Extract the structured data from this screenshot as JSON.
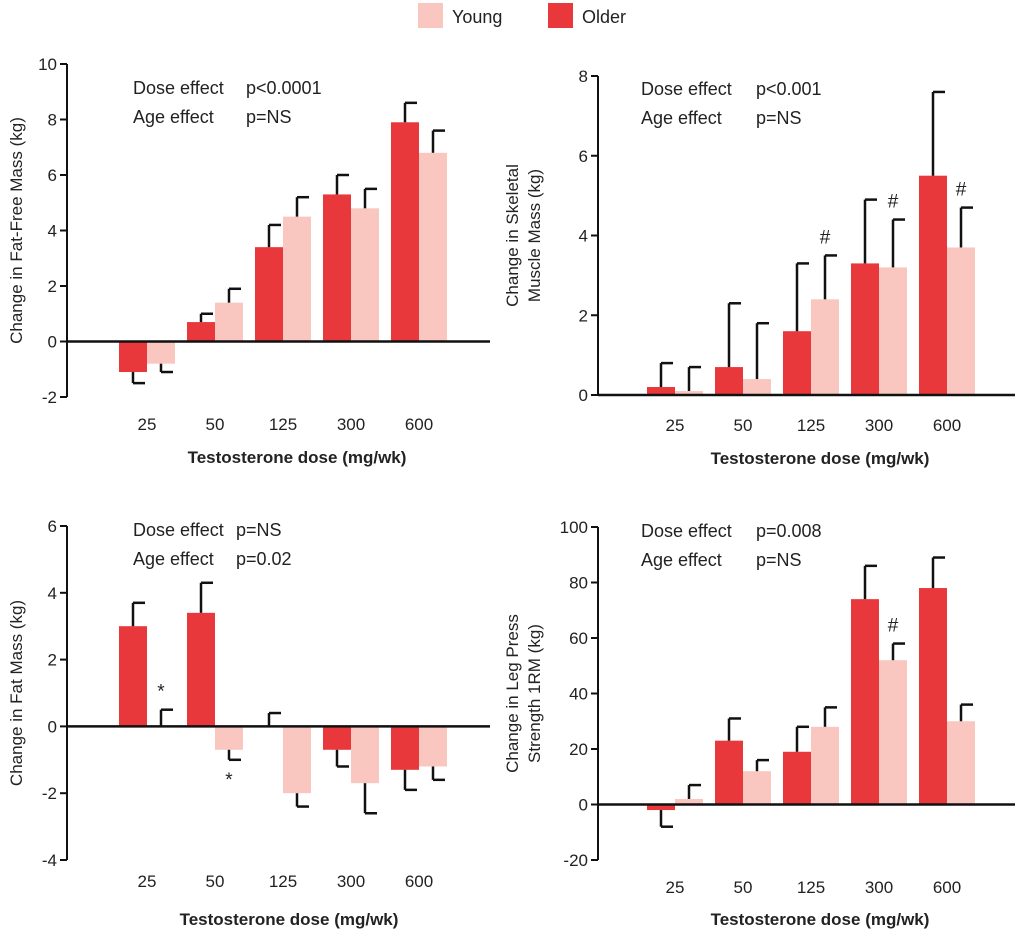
{
  "legend": {
    "items": [
      {
        "label": "Young",
        "color": "#f9c7c0"
      },
      {
        "label": "Older",
        "color": "#e8383b"
      }
    ]
  },
  "colors": {
    "young": "#f9c7c0",
    "older": "#e8383b",
    "axis": "#111111",
    "text": "#222222"
  },
  "chart_data": [
    {
      "type": "bar",
      "categories": [
        "25",
        "50",
        "125",
        "300",
        "600"
      ],
      "xlabel": "Testosterone dose (mg/wk)",
      "ylabel": [
        "Change in Fat-Free Mass (kg)"
      ],
      "ylim": [
        -2,
        10
      ],
      "yticks": [
        -2,
        0,
        2,
        4,
        6,
        8,
        10
      ],
      "stats": [
        [
          "Dose effect",
          "p<0.0001"
        ],
        [
          "Age effect",
          "p=NS"
        ]
      ],
      "series": [
        {
          "name": "Older",
          "values": [
            -1.1,
            0.7,
            3.4,
            5.3,
            7.9
          ],
          "errors": [
            0.4,
            0.3,
            0.8,
            0.7,
            0.7
          ]
        },
        {
          "name": "Young",
          "values": [
            -0.8,
            1.4,
            4.5,
            4.8,
            6.8
          ],
          "errors": [
            0.3,
            0.5,
            0.7,
            0.7,
            0.8
          ]
        }
      ],
      "annotations": []
    },
    {
      "type": "bar",
      "categories": [
        "25",
        "50",
        "125",
        "300",
        "600"
      ],
      "xlabel": "Testosterone dose (mg/wk)",
      "ylabel": [
        "Change in Skeletal",
        "Muscle Mass (kg)"
      ],
      "ylim": [
        0,
        8
      ],
      "yticks": [
        0,
        2,
        4,
        6,
        8
      ],
      "stats": [
        [
          "Dose effect",
          "p<0.001"
        ],
        [
          "Age effect",
          "p=NS"
        ]
      ],
      "series": [
        {
          "name": "Older",
          "values": [
            0.2,
            0.7,
            1.6,
            3.3,
            5.5
          ],
          "errors": [
            0.6,
            1.6,
            1.7,
            1.6,
            2.1
          ]
        },
        {
          "name": "Young",
          "values": [
            0.1,
            0.4,
            2.4,
            3.2,
            3.7
          ],
          "errors": [
            0.6,
            1.4,
            1.1,
            1.2,
            1.0
          ]
        }
      ],
      "annotations": [
        {
          "category": 2,
          "series": 1,
          "text": "#",
          "position": "above"
        },
        {
          "category": 3,
          "series": 1,
          "text": "#",
          "position": "above"
        },
        {
          "category": 4,
          "series": 1,
          "text": "#",
          "position": "above"
        }
      ]
    },
    {
      "type": "bar",
      "categories": [
        "25",
        "50",
        "125",
        "300",
        "600"
      ],
      "xlabel": "Testosterone dose (mg/wk)",
      "ylabel": [
        "Change in Fat Mass (kg)"
      ],
      "ylim": [
        -4,
        6
      ],
      "yticks": [
        -4,
        -2,
        0,
        2,
        4,
        6
      ],
      "stats": [
        [
          "Dose effect",
          "p=NS"
        ],
        [
          "Age effect",
          "p=0.02"
        ]
      ],
      "series": [
        {
          "name": "Older",
          "values": [
            3.0,
            3.4,
            0.0,
            -0.7,
            -1.3
          ],
          "errors": [
            0.7,
            0.9,
            0.4,
            0.5,
            0.6
          ]
        },
        {
          "name": "Young",
          "values": [
            0.0,
            -0.7,
            -2.0,
            -1.7,
            -1.2
          ],
          "errors": [
            0.5,
            0.3,
            0.4,
            0.9,
            0.4
          ]
        }
      ],
      "annotations": [
        {
          "category": 0,
          "series": 1,
          "text": "*",
          "position": "above"
        },
        {
          "category": 1,
          "series": 1,
          "text": "*",
          "position": "below"
        }
      ]
    },
    {
      "type": "bar",
      "categories": [
        "25",
        "50",
        "125",
        "300",
        "600"
      ],
      "xlabel": "Testosterone dose (mg/wk)",
      "ylabel": [
        "Change in Leg Press",
        "Strength 1RM (kg)"
      ],
      "ylim": [
        -20,
        100
      ],
      "yticks": [
        -20,
        0,
        20,
        40,
        60,
        80,
        100
      ],
      "stats": [
        [
          "Dose effect",
          "p=0.008"
        ],
        [
          "Age effect",
          "p=NS"
        ]
      ],
      "series": [
        {
          "name": "Older",
          "values": [
            -2,
            23,
            19,
            74,
            78
          ],
          "errors": [
            6,
            8,
            9,
            12,
            11
          ]
        },
        {
          "name": "Young",
          "values": [
            2,
            12,
            28,
            52,
            30
          ],
          "errors": [
            5,
            4,
            7,
            6,
            6
          ]
        }
      ],
      "annotations": [
        {
          "category": 3,
          "series": 1,
          "text": "#",
          "position": "above"
        }
      ]
    }
  ]
}
